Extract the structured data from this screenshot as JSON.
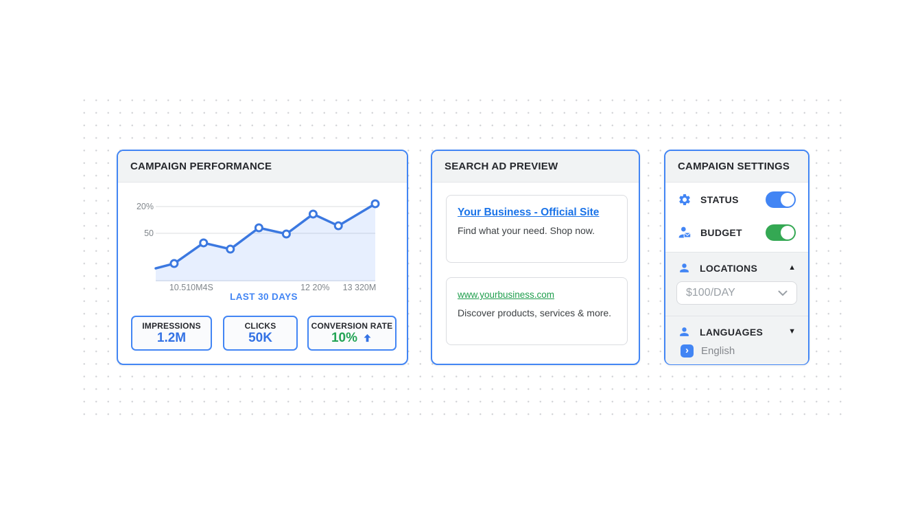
{
  "page": {
    "background_color": "#ffffff",
    "dot_color": "#d4d5d8"
  },
  "colors": {
    "primary_blue": "#4285f4",
    "chart_blue": "#3b78e0",
    "value_blue": "#3472e4",
    "value_green": "#23a455",
    "toggle_green": "#34a853",
    "link_blue": "#1a73e8",
    "url_green": "#1e9e4c",
    "header_bg": "#f1f3f4",
    "text_dark": "#26282d",
    "text_gray": "#9aa0a6"
  },
  "icons": {
    "caret_up": "▲",
    "caret_down": "▼",
    "arrow_right_glyph": "›"
  },
  "cards": {
    "performance": {
      "title": "CAMPAIGN PERFORMANCE",
      "metrics": [
        {
          "label": "IMPRESSIONS",
          "value": "1.2M",
          "color": "blue"
        },
        {
          "label": "CLICKS",
          "value": "50K",
          "color": "blue"
        },
        {
          "label": "CONVERSION RATE",
          "value": "10%",
          "color": "green",
          "trend": "up"
        }
      ]
    },
    "ad_preview": {
      "title": "SEARCH AD PREVIEW",
      "ads": [
        {
          "headline": "Your Business - Official Site",
          "description": "Find what your need. Shop now."
        },
        {
          "url": "www.yourbusiness.com",
          "description": "Discover products, services & more."
        }
      ]
    },
    "settings": {
      "title": "CAMPAIGN SETTINGS",
      "toggles": [
        {
          "label": "STATUS",
          "state": "on",
          "color": "#4285f4"
        },
        {
          "label": "BUDGET",
          "state": "on",
          "color": "#34a853"
        }
      ],
      "locations": {
        "label": "LOCATIONS",
        "expanded": true,
        "dropdown_value": "$100/DAY"
      },
      "languages": {
        "label": "LANGUAGES",
        "expanded": false,
        "value": "English"
      }
    }
  },
  "chart_data": {
    "type": "line",
    "title": "",
    "caption": "LAST 30 DAYS",
    "y_tick_labels": [
      "20%",
      "50"
    ],
    "x_tick_labels": [
      "10.510M4S",
      "12 20%",
      "13 320M"
    ],
    "x_tick_positions_pct": [
      16.2,
      72.6,
      92.8
    ],
    "gridlines_y_pct": [
      7.6,
      40.7
    ],
    "legend": "none",
    "grid": "horizontal-only",
    "series": [
      {
        "name": "campaign-performance",
        "points_pct": [
          [
            0,
            84
          ],
          [
            8.4,
            78
          ],
          [
            21.8,
            52.5
          ],
          [
            34,
            60.2
          ],
          [
            47,
            33.9
          ],
          [
            59.5,
            41.5
          ],
          [
            71.7,
            16.9
          ],
          [
            83.2,
            31.4
          ],
          [
            100,
            4.2
          ]
        ],
        "approx_values": [
          14,
          19,
          40,
          34,
          56,
          49,
          70,
          58,
          81
        ]
      }
    ],
    "marker_style": "hollow-circle",
    "marker_from_index": 1,
    "line_color": "#3b78e0",
    "area_fill": "rgba(66,133,244,0.13)",
    "gridline_color": "#e7e8ea"
  }
}
